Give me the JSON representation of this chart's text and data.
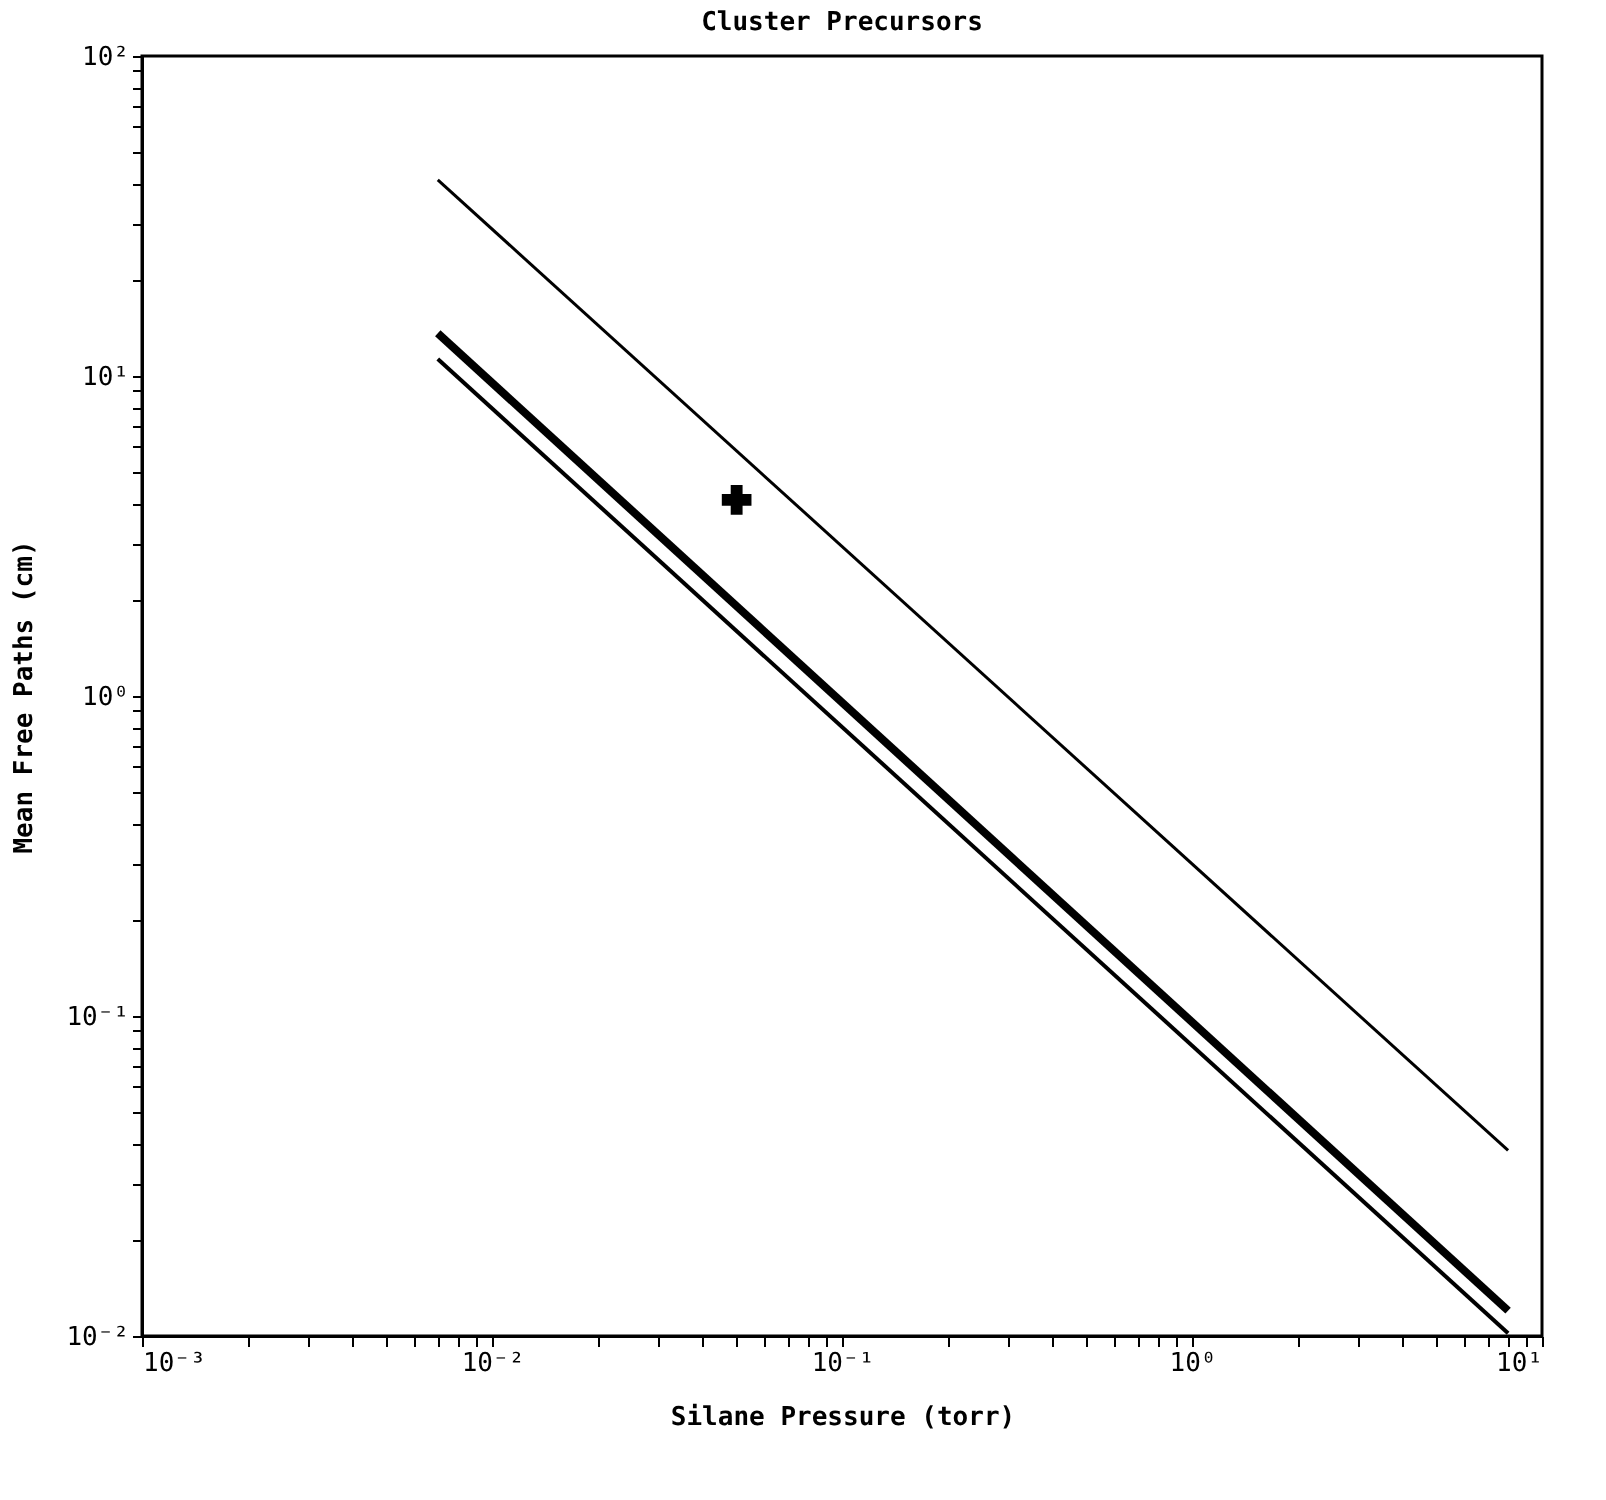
{
  "chart_data": {
    "type": "line",
    "title": "Cluster Precursors",
    "xlabel": "Silane Pressure (torr)",
    "ylabel": "Mean Free Paths (cm)",
    "log": "xy",
    "grid": false,
    "xlim": [
      0.001,
      10
    ],
    "ylim": [
      0.01,
      100
    ],
    "xticks": [
      {
        "value": 0.001,
        "label": "10⁻³"
      },
      {
        "value": 0.002,
        "label": null
      },
      {
        "value": 0.003,
        "label": null
      },
      {
        "value": 0.004,
        "label": null
      },
      {
        "value": 0.005,
        "label": null
      },
      {
        "value": 0.006,
        "label": null
      },
      {
        "value": 0.007,
        "label": null
      },
      {
        "value": 0.008,
        "label": null
      },
      {
        "value": 0.009,
        "label": null
      },
      {
        "value": 0.01,
        "label": "10⁻²"
      },
      {
        "value": 0.02,
        "label": null
      },
      {
        "value": 0.03,
        "label": null
      },
      {
        "value": 0.04,
        "label": null
      },
      {
        "value": 0.05,
        "label": null
      },
      {
        "value": 0.06,
        "label": null
      },
      {
        "value": 0.07,
        "label": null
      },
      {
        "value": 0.08,
        "label": null
      },
      {
        "value": 0.09,
        "label": null
      },
      {
        "value": 0.1,
        "label": "10⁻¹"
      },
      {
        "value": 0.2,
        "label": null
      },
      {
        "value": 0.3,
        "label": null
      },
      {
        "value": 0.4,
        "label": null
      },
      {
        "value": 0.5,
        "label": null
      },
      {
        "value": 0.6,
        "label": null
      },
      {
        "value": 0.7,
        "label": null
      },
      {
        "value": 0.8,
        "label": null
      },
      {
        "value": 0.9,
        "label": null
      },
      {
        "value": 1,
        "label": "10⁰"
      },
      {
        "value": 2,
        "label": null
      },
      {
        "value": 3,
        "label": null
      },
      {
        "value": 4,
        "label": null
      },
      {
        "value": 5,
        "label": null
      },
      {
        "value": 6,
        "label": null
      },
      {
        "value": 7,
        "label": null
      },
      {
        "value": 8,
        "label": null
      },
      {
        "value": 9,
        "label": null
      },
      {
        "value": 10,
        "label": "10¹"
      }
    ],
    "yticks": [
      {
        "value": 0.01,
        "label": "10⁻²"
      },
      {
        "value": 0.02,
        "label": null
      },
      {
        "value": 0.03,
        "label": null
      },
      {
        "value": 0.04,
        "label": null
      },
      {
        "value": 0.05,
        "label": null
      },
      {
        "value": 0.06,
        "label": null
      },
      {
        "value": 0.07,
        "label": null
      },
      {
        "value": 0.08,
        "label": null
      },
      {
        "value": 0.09,
        "label": null
      },
      {
        "value": 0.1,
        "label": "10⁻¹"
      },
      {
        "value": 0.2,
        "label": null
      },
      {
        "value": 0.3,
        "label": null
      },
      {
        "value": 0.4,
        "label": null
      },
      {
        "value": 0.5,
        "label": null
      },
      {
        "value": 0.6,
        "label": null
      },
      {
        "value": 0.7,
        "label": null
      },
      {
        "value": 0.8,
        "label": null
      },
      {
        "value": 0.9,
        "label": null
      },
      {
        "value": 1,
        "label": "10⁰"
      },
      {
        "value": 2,
        "label": null
      },
      {
        "value": 3,
        "label": null
      },
      {
        "value": 4,
        "label": null
      },
      {
        "value": 5,
        "label": null
      },
      {
        "value": 6,
        "label": null
      },
      {
        "value": 7,
        "label": null
      },
      {
        "value": 8,
        "label": null
      },
      {
        "value": 9,
        "label": null
      },
      {
        "value": 10,
        "label": "10¹"
      },
      {
        "value": 20,
        "label": null
      },
      {
        "value": 30,
        "label": null
      },
      {
        "value": 40,
        "label": null
      },
      {
        "value": 50,
        "label": null
      },
      {
        "value": 60,
        "label": null
      },
      {
        "value": 70,
        "label": null
      },
      {
        "value": 80,
        "label": null
      },
      {
        "value": 90,
        "label": null
      },
      {
        "value": 100,
        "label": "10²"
      }
    ],
    "series": [
      {
        "color": "#000000",
        "x": [
          0.007,
          8
        ],
        "values": [
          41,
          0.038
        ]
      },
      {
        "color": "#000000",
        "x": [
          0.007,
          8
        ],
        "values": [
          13.6,
          0.012
        ]
      },
      {
        "color": "#000000",
        "x": [
          0.007,
          8
        ],
        "values": [
          11.3,
          0.0102
        ]
      },
      {
        "type": "scatter",
        "color": "#000000",
        "marker": "cross",
        "x": [
          0.05
        ],
        "values": [
          4.1
        ]
      }
    ]
  }
}
